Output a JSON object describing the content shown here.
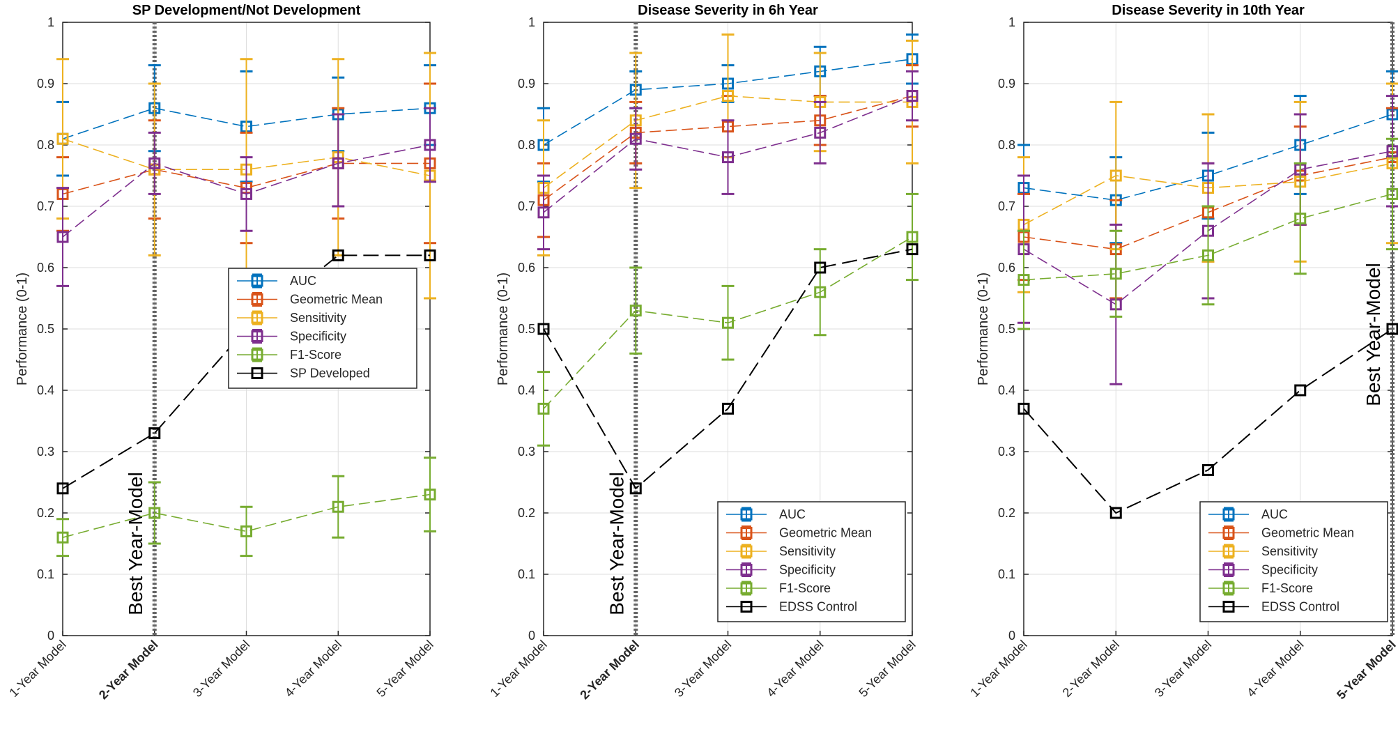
{
  "chart_data": [
    {
      "type": "line",
      "title": "SP Development/Not Development",
      "ylabel": "Performance (0-1)",
      "xlabel": "",
      "ylim": [
        0,
        1
      ],
      "yticks": [
        "0",
        "0.1",
        "0.2",
        "0.3",
        "0.4",
        "0.5",
        "0.6",
        "0.7",
        "0.8",
        "0.9",
        "1"
      ],
      "categories": [
        "1-Year Model",
        "2-Year Model",
        "3-Year Model",
        "4-Year Model",
        "5-Year Model"
      ],
      "bold_category_index": 1,
      "best_model_index": 1,
      "best_label": "Best Year-Model",
      "grid": true,
      "legend_position": "center-right",
      "series": [
        {
          "name": "AUC",
          "color": "#0072BD",
          "values": [
            0.81,
            0.86,
            0.83,
            0.85,
            0.86
          ],
          "err_low": [
            0.75,
            0.79,
            0.74,
            0.79,
            0.8
          ],
          "err_high": [
            0.87,
            0.93,
            0.92,
            0.91,
            0.93
          ]
        },
        {
          "name": "Geometric Mean",
          "color": "#D95319",
          "values": [
            0.72,
            0.76,
            0.73,
            0.77,
            0.77
          ],
          "err_low": [
            0.66,
            0.68,
            0.64,
            0.68,
            0.64
          ],
          "err_high": [
            0.78,
            0.84,
            0.82,
            0.86,
            0.9
          ]
        },
        {
          "name": "Sensitivity",
          "color": "#EDB120",
          "values": [
            0.81,
            0.76,
            0.76,
            0.78,
            0.75
          ],
          "err_low": [
            0.68,
            0.62,
            0.58,
            0.62,
            0.55
          ],
          "err_high": [
            0.94,
            0.9,
            0.94,
            0.94,
            0.95
          ]
        },
        {
          "name": "Specificity",
          "color": "#7E2F8E",
          "values": [
            0.65,
            0.77,
            0.72,
            0.77,
            0.8
          ],
          "err_low": [
            0.57,
            0.72,
            0.66,
            0.7,
            0.74
          ],
          "err_high": [
            0.73,
            0.82,
            0.78,
            0.85,
            0.86
          ]
        },
        {
          "name": "F1-Score",
          "color": "#77AC30",
          "values": [
            0.16,
            0.2,
            0.17,
            0.21,
            0.23
          ],
          "err_low": [
            0.13,
            0.15,
            0.13,
            0.16,
            0.17
          ],
          "err_high": [
            0.19,
            0.25,
            0.21,
            0.26,
            0.29
          ]
        },
        {
          "name": "SP Developed",
          "color": "#000000",
          "control": true,
          "values": [
            0.24,
            0.33,
            0.5,
            0.62,
            0.62
          ]
        }
      ]
    },
    {
      "type": "line",
      "title": "Disease Severity in 6h Year",
      "ylabel": "Performance (0-1)",
      "xlabel": "",
      "ylim": [
        0,
        1
      ],
      "yticks": [
        "0",
        "0.1",
        "0.2",
        "0.3",
        "0.4",
        "0.5",
        "0.6",
        "0.7",
        "0.8",
        "0.9",
        "1"
      ],
      "categories": [
        "1-Year Model",
        "2-Year Model",
        "3-Year Model",
        "4-Year Model",
        "5-Year Model"
      ],
      "bold_category_index": 1,
      "best_model_index": 1,
      "best_label": "Best Year-Model",
      "grid": true,
      "legend_position": "bottom-right",
      "series": [
        {
          "name": "AUC",
          "color": "#0072BD",
          "values": [
            0.8,
            0.89,
            0.9,
            0.92,
            0.94
          ],
          "err_low": [
            0.74,
            0.86,
            0.87,
            0.88,
            0.9
          ],
          "err_high": [
            0.86,
            0.92,
            0.93,
            0.96,
            0.98
          ]
        },
        {
          "name": "Geometric Mean",
          "color": "#D95319",
          "values": [
            0.71,
            0.82,
            0.83,
            0.84,
            0.88
          ],
          "err_low": [
            0.65,
            0.77,
            0.78,
            0.8,
            0.83
          ],
          "err_high": [
            0.77,
            0.87,
            0.88,
            0.88,
            0.93
          ]
        },
        {
          "name": "Sensitivity",
          "color": "#EDB120",
          "values": [
            0.73,
            0.84,
            0.88,
            0.87,
            0.87
          ],
          "err_low": [
            0.62,
            0.73,
            0.78,
            0.79,
            0.77
          ],
          "err_high": [
            0.84,
            0.95,
            0.98,
            0.95,
            0.97
          ]
        },
        {
          "name": "Specificity",
          "color": "#7E2F8E",
          "values": [
            0.69,
            0.81,
            0.78,
            0.82,
            0.88
          ],
          "err_low": [
            0.63,
            0.76,
            0.72,
            0.77,
            0.84
          ],
          "err_high": [
            0.75,
            0.86,
            0.84,
            0.87,
            0.92
          ]
        },
        {
          "name": "F1-Score",
          "color": "#77AC30",
          "values": [
            0.37,
            0.53,
            0.51,
            0.56,
            0.65
          ],
          "err_low": [
            0.31,
            0.46,
            0.45,
            0.49,
            0.58
          ],
          "err_high": [
            0.43,
            0.6,
            0.57,
            0.63,
            0.72
          ]
        },
        {
          "name": "EDSS Control",
          "color": "#000000",
          "control": true,
          "values": [
            0.5,
            0.24,
            0.37,
            0.6,
            0.63
          ]
        }
      ]
    },
    {
      "type": "line",
      "title": "Disease Severity in 10th Year",
      "ylabel": "Performance (0-1)",
      "xlabel": "",
      "ylim": [
        0,
        1
      ],
      "yticks": [
        "0",
        "0.1",
        "0.2",
        "0.3",
        "0.4",
        "0.5",
        "0.6",
        "0.7",
        "0.8",
        "0.9",
        "1"
      ],
      "categories": [
        "1-Year Model",
        "2-Year Model",
        "3-Year Model",
        "4-Year Model",
        "5-Year Model"
      ],
      "bold_category_index": 4,
      "best_model_index": 4,
      "best_label": "Best Year-Model",
      "grid": true,
      "legend_position": "bottom-right",
      "series": [
        {
          "name": "AUC",
          "color": "#0072BD",
          "values": [
            0.73,
            0.71,
            0.75,
            0.8,
            0.85
          ],
          "err_low": [
            0.66,
            0.64,
            0.68,
            0.72,
            0.78
          ],
          "err_high": [
            0.8,
            0.78,
            0.82,
            0.88,
            0.92
          ]
        },
        {
          "name": "Geometric Mean",
          "color": "#D95319",
          "values": [
            0.65,
            0.63,
            0.69,
            0.75,
            0.78
          ],
          "err_low": [
            0.58,
            0.55,
            0.61,
            0.67,
            0.7
          ],
          "err_high": [
            0.72,
            0.71,
            0.77,
            0.83,
            0.86
          ]
        },
        {
          "name": "Sensitivity",
          "color": "#EDB120",
          "values": [
            0.67,
            0.75,
            0.73,
            0.74,
            0.77
          ],
          "err_low": [
            0.56,
            0.63,
            0.61,
            0.61,
            0.64
          ],
          "err_high": [
            0.78,
            0.87,
            0.85,
            0.87,
            0.9
          ]
        },
        {
          "name": "Specificity",
          "color": "#7E2F8E",
          "values": [
            0.63,
            0.54,
            0.66,
            0.76,
            0.79
          ],
          "err_low": [
            0.51,
            0.41,
            0.55,
            0.67,
            0.7
          ],
          "err_high": [
            0.75,
            0.67,
            0.77,
            0.85,
            0.88
          ]
        },
        {
          "name": "F1-Score",
          "color": "#77AC30",
          "values": [
            0.58,
            0.59,
            0.62,
            0.68,
            0.72
          ],
          "err_low": [
            0.5,
            0.52,
            0.54,
            0.59,
            0.63
          ],
          "err_high": [
            0.66,
            0.66,
            0.7,
            0.77,
            0.81
          ]
        },
        {
          "name": "EDSS Control",
          "color": "#000000",
          "control": true,
          "values": [
            0.37,
            0.2,
            0.27,
            0.4,
            0.5
          ]
        }
      ]
    }
  ]
}
